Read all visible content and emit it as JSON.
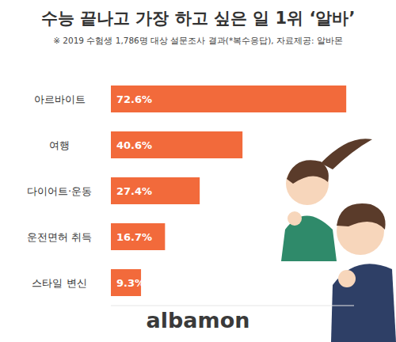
{
  "chart_data": {
    "type": "bar",
    "orientation": "horizontal",
    "title": "수능 끝나고 가장 하고 싶은 일 1위 ‘알바’",
    "subtitle": "※ 2019 수험생 1,786명 대상 설문조사 결과(*복수응답), 자료제공: 알바몬",
    "categories": [
      "아르바이트",
      "여행",
      "다이어트·운동",
      "운전면허 취득",
      "스타일 변신"
    ],
    "values": [
      72.6,
      40.6,
      27.4,
      16.7,
      9.3
    ],
    "value_labels": [
      "72.6%",
      "40.6%",
      "27.4%",
      "16.7%",
      "9.3%"
    ],
    "color": "#f26a3b",
    "xlim": [
      0,
      75
    ],
    "grid": false,
    "tick_labels": "y",
    "data_labels": true,
    "annotations": [
      "albamon"
    ]
  }
}
